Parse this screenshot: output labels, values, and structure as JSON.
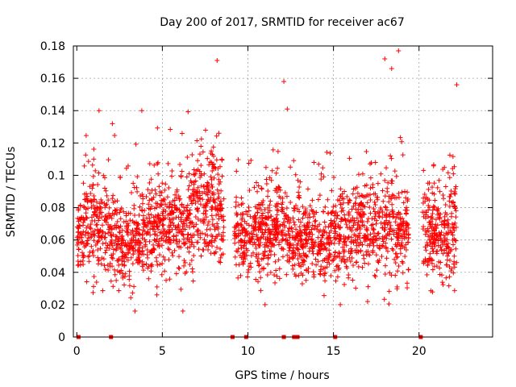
{
  "chart_data": {
    "type": "scatter",
    "title": "Day 200 of 2017, SRMTID for receiver ac67",
    "xlabel": "GPS time / hours",
    "ylabel": "SRMTID / TECUs",
    "xlim": [
      -0.2,
      24.3
    ],
    "ylim": [
      0,
      0.18
    ],
    "xticks": [
      0,
      5,
      10,
      15,
      20
    ],
    "yticks": [
      0,
      0.02,
      0.04,
      0.06,
      0.08,
      0.1,
      0.12,
      0.14,
      0.16,
      0.18
    ],
    "xtick_labels": [
      "0",
      "5",
      "10",
      "15",
      "20"
    ],
    "ytick_labels": [
      "0",
      "0.02",
      "0.04",
      "0.06",
      "0.08",
      "0.1",
      "0.12",
      "0.14",
      "0.16",
      "0.18"
    ],
    "grid": true,
    "marker": "+",
    "color": "#ff0000",
    "gap_intervals_hours": [
      [
        8.6,
        9.2
      ],
      [
        19.4,
        20.2
      ],
      [
        22.2,
        24.3
      ]
    ],
    "zero_value_markers_x": [
      0.1,
      2.0,
      9.1,
      9.9,
      12.1,
      12.7,
      12.9,
      15.1,
      20.1
    ],
    "envelope": {
      "x": [
        0,
        1,
        2,
        3,
        4,
        5,
        6,
        7,
        8,
        9,
        10,
        11,
        12,
        13,
        14,
        15,
        16,
        17,
        18,
        19,
        20,
        21,
        22
      ],
      "center": [
        0.06,
        0.07,
        0.062,
        0.055,
        0.065,
        0.07,
        0.065,
        0.072,
        0.085,
        0.065,
        0.06,
        0.065,
        0.065,
        0.06,
        0.058,
        0.06,
        0.065,
        0.068,
        0.07,
        0.065,
        0.065,
        0.06,
        0.07
      ],
      "spread": [
        0.02,
        0.025,
        0.025,
        0.022,
        0.025,
        0.025,
        0.025,
        0.028,
        0.03,
        0.02,
        0.018,
        0.022,
        0.022,
        0.02,
        0.02,
        0.022,
        0.025,
        0.025,
        0.028,
        0.022,
        0.022,
        0.022,
        0.03
      ]
    },
    "highlight_points": [
      {
        "x": 1.3,
        "y": 0.14
      },
      {
        "x": 3.8,
        "y": 0.14
      },
      {
        "x": 8.2,
        "y": 0.171
      },
      {
        "x": 12.1,
        "y": 0.158
      },
      {
        "x": 12.3,
        "y": 0.141
      },
      {
        "x": 18.0,
        "y": 0.172
      },
      {
        "x": 18.4,
        "y": 0.166
      },
      {
        "x": 18.8,
        "y": 0.177
      },
      {
        "x": 22.2,
        "y": 0.156
      },
      {
        "x": 3.4,
        "y": 0.016
      },
      {
        "x": 6.2,
        "y": 0.016
      },
      {
        "x": 15.4,
        "y": 0.02
      },
      {
        "x": 11.0,
        "y": 0.02
      }
    ],
    "point_count": 2600
  }
}
